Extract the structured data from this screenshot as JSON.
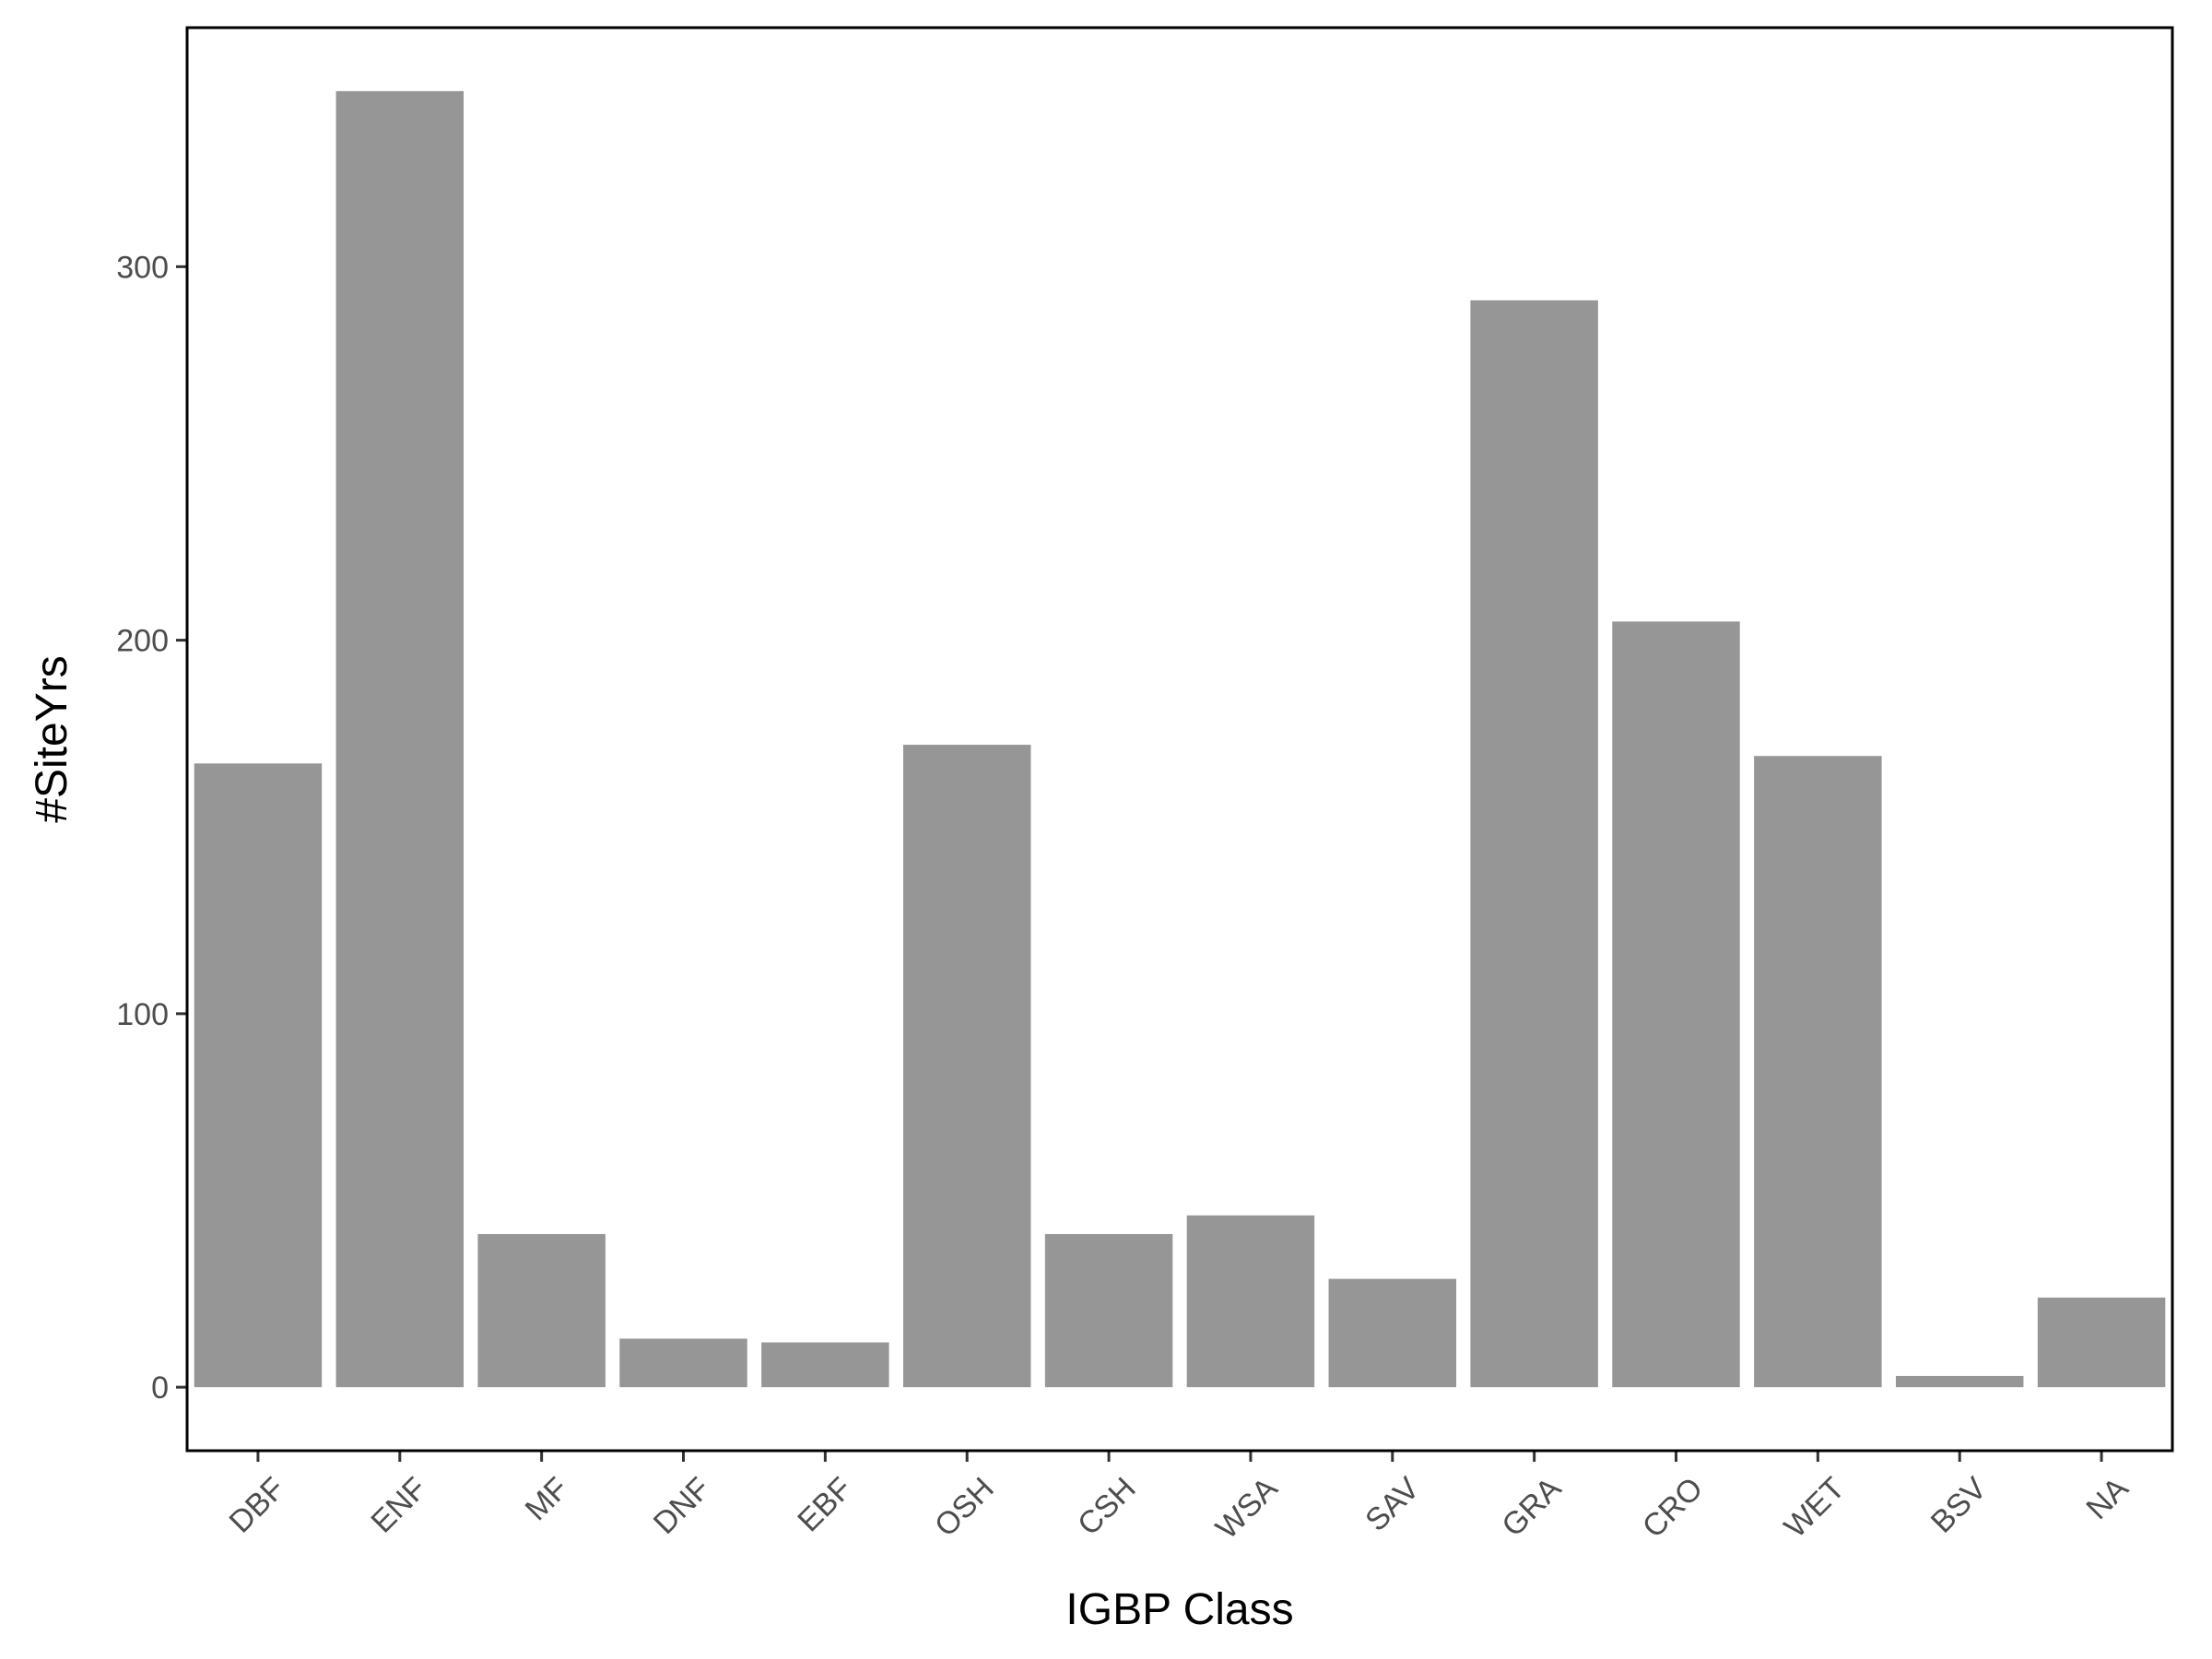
{
  "chart_data": {
    "type": "bar",
    "title": "",
    "xlabel": "IGBP Class",
    "ylabel": "#SiteYrs",
    "categories": [
      "DBF",
      "ENF",
      "MF",
      "DNF",
      "EBF",
      "OSH",
      "CSH",
      "WSA",
      "SAV",
      "GRA",
      "CRO",
      "WET",
      "BSV",
      "NA"
    ],
    "values": [
      167,
      347,
      41,
      13,
      12,
      172,
      41,
      46,
      29,
      291,
      205,
      169,
      3,
      24
    ],
    "yticks": [
      0,
      100,
      200,
      300
    ],
    "ylim": [
      -17,
      364
    ],
    "grid": false,
    "legend": "none",
    "bar_color": "#969696"
  }
}
